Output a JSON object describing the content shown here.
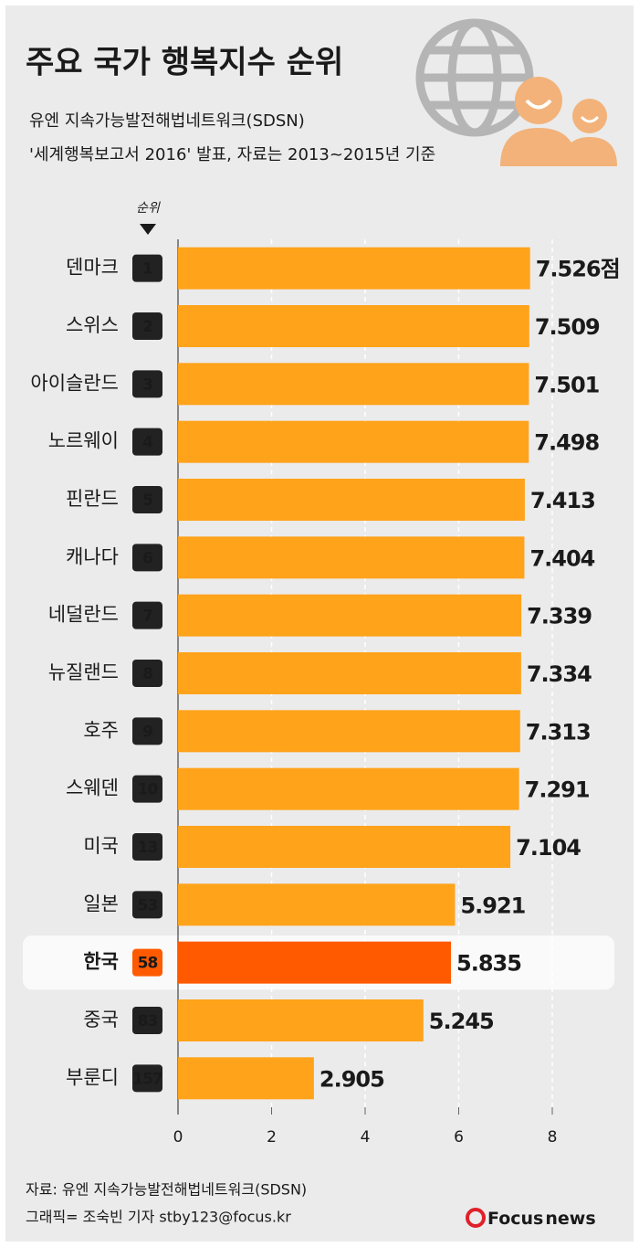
{
  "chart_data": {
    "type": "bar",
    "orientation": "horizontal",
    "title": "주요 국가 행복지수 순위",
    "subtitle": [
      "유엔 지속가능발전해법네트워크(SDSN)",
      "'세계행복보고서 2016' 발표, 자료는 2013~2015년 기준"
    ],
    "rank_label": "순위",
    "categories": [
      "덴마크",
      "스위스",
      "아이슬란드",
      "노르웨이",
      "핀란드",
      "캐나다",
      "네덜란드",
      "뉴질랜드",
      "호주",
      "스웨덴",
      "미국",
      "일본",
      "한국",
      "중국",
      "부룬디"
    ],
    "ranks": [
      1,
      2,
      3,
      4,
      5,
      6,
      7,
      8,
      9,
      10,
      13,
      53,
      58,
      83,
      157
    ],
    "values": [
      7.526,
      7.509,
      7.501,
      7.498,
      7.413,
      7.404,
      7.339,
      7.334,
      7.313,
      7.291,
      7.104,
      5.921,
      5.835,
      5.245,
      2.905
    ],
    "value_labels": [
      "7.526점",
      "7.509",
      "7.501",
      "7.498",
      "7.413",
      "7.404",
      "7.339",
      "7.334",
      "7.313",
      "7.291",
      "7.104",
      "5.921",
      "5.835",
      "5.245",
      "2.905"
    ],
    "color": "#ffa31a",
    "colors": [
      "#ffa31a",
      "#ffa31a",
      "#ffa31a",
      "#ffa31a",
      "#ffa31a",
      "#ffa31a",
      "#ffa31a",
      "#ffa31a",
      "#ffa31a",
      "#ffa31a",
      "#ffa31a",
      "#ffa31a",
      "#ff5a00",
      "#ffa31a",
      "#ffa31a"
    ],
    "xlim": [
      0,
      8
    ],
    "xticks": [
      0,
      2,
      4,
      6,
      8
    ],
    "grid": true,
    "source": "자료: 유엔 지속가능발전해법네트워크(SDSN)",
    "credit": "그래픽= 조숙빈 기자 stby123@focus.kr",
    "logo": [
      "Focus",
      "news"
    ]
  }
}
